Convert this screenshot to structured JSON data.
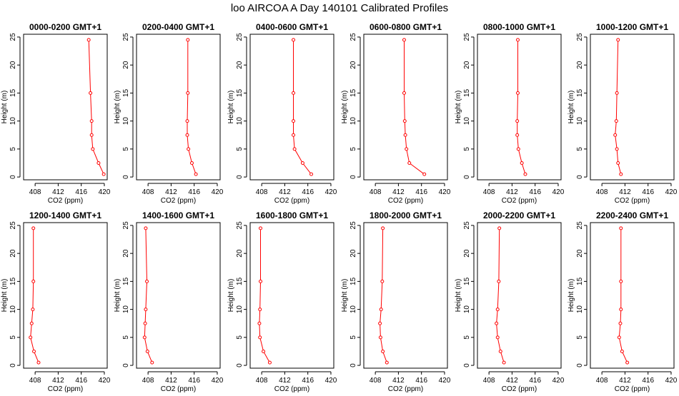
{
  "figure": {
    "title": "loo AIRCOA A  Day 140101  Calibrated Profiles"
  },
  "colors": {
    "profile": "#ff0000",
    "axis": "#000000",
    "background": "#ffffff"
  },
  "chart_data": [
    {
      "type": "line",
      "title": "0000-0200 GMT+1",
      "xlabel": "CO2 (ppm)",
      "ylabel": "Height (m)",
      "xlim": [
        406,
        420.5
      ],
      "ylim": [
        -0.5,
        25.5
      ],
      "xticks": [
        "408",
        "412",
        "416",
        "420"
      ],
      "yticks": [
        "0",
        "5",
        "10",
        "15",
        "20",
        "25"
      ],
      "series": [
        {
          "x": [
            419.9,
            419.0,
            418.0,
            417.8,
            417.8,
            417.6,
            417.3
          ],
          "y": [
            0.5,
            2.5,
            5,
            7.5,
            10,
            15,
            24.5
          ]
        }
      ]
    },
    {
      "type": "line",
      "title": "0200-0400 GMT+1",
      "xlabel": "CO2 (ppm)",
      "ylabel": "Height (m)",
      "xlim": [
        406,
        420.5
      ],
      "ylim": [
        -0.5,
        25.5
      ],
      "xticks": [
        "408",
        "412",
        "416",
        "420"
      ],
      "yticks": [
        "0",
        "5",
        "10",
        "15",
        "20",
        "25"
      ],
      "series": [
        {
          "x": [
            416.3,
            415.6,
            415.0,
            414.8,
            414.8,
            414.9,
            414.9
          ],
          "y": [
            0.5,
            2.5,
            5,
            7.5,
            10,
            15,
            24.5
          ]
        }
      ]
    },
    {
      "type": "line",
      "title": "0400-0600 GMT+1",
      "xlabel": "CO2 (ppm)",
      "ylabel": "Height (m)",
      "xlim": [
        406,
        420.5
      ],
      "ylim": [
        -0.5,
        25.5
      ],
      "xticks": [
        "408",
        "412",
        "416",
        "420"
      ],
      "yticks": [
        "0",
        "5",
        "10",
        "15",
        "20",
        "25"
      ],
      "series": [
        {
          "x": [
            416.6,
            415.1,
            413.7,
            413.5,
            413.5,
            413.5,
            413.5
          ],
          "y": [
            0.5,
            2.5,
            5,
            7.5,
            10,
            15,
            24.5
          ]
        }
      ]
    },
    {
      "type": "line",
      "title": "0600-0800 GMT+1",
      "xlabel": "CO2 (ppm)",
      "ylabel": "Height (m)",
      "xlim": [
        406,
        420.5
      ],
      "ylim": [
        -0.5,
        25.5
      ],
      "xticks": [
        "408",
        "412",
        "416",
        "420"
      ],
      "yticks": [
        "0",
        "5",
        "10",
        "15",
        "20",
        "25"
      ],
      "series": [
        {
          "x": [
            416.5,
            413.9,
            413.4,
            413.2,
            413.1,
            413.0,
            413.0
          ],
          "y": [
            0.5,
            2.5,
            5,
            7.5,
            10,
            15,
            24.5
          ]
        }
      ]
    },
    {
      "type": "line",
      "title": "0800-1000 GMT+1",
      "xlabel": "CO2 (ppm)",
      "ylabel": "Height (m)",
      "xlim": [
        406,
        420.5
      ],
      "ylim": [
        -0.5,
        25.5
      ],
      "xticks": [
        "408",
        "412",
        "416",
        "420"
      ],
      "yticks": [
        "0",
        "5",
        "10",
        "15",
        "20",
        "25"
      ],
      "series": [
        {
          "x": [
            414.3,
            413.7,
            413.1,
            412.9,
            412.9,
            413.0,
            413.0
          ],
          "y": [
            0.5,
            2.5,
            5,
            7.5,
            10,
            15,
            24.5
          ]
        }
      ]
    },
    {
      "type": "line",
      "title": "1000-1200 GMT+1",
      "xlabel": "CO2 (ppm)",
      "ylabel": "Height (m)",
      "xlim": [
        406,
        420.5
      ],
      "ylim": [
        -0.5,
        25.5
      ],
      "xticks": [
        "408",
        "412",
        "416",
        "420"
      ],
      "yticks": [
        "0",
        "5",
        "10",
        "15",
        "20",
        "25"
      ],
      "series": [
        {
          "x": [
            411.3,
            410.8,
            410.6,
            410.3,
            410.5,
            410.6,
            410.8
          ],
          "y": [
            0.5,
            2.5,
            5,
            7.5,
            10,
            15,
            24.5
          ]
        }
      ]
    },
    {
      "type": "line",
      "title": "1200-1400 GMT+1",
      "xlabel": "CO2 (ppm)",
      "ylabel": "Height (m)",
      "xlim": [
        406,
        420.5
      ],
      "ylim": [
        -0.5,
        25.5
      ],
      "xticks": [
        "408",
        "412",
        "416",
        "420"
      ],
      "yticks": [
        "0",
        "5",
        "10",
        "15",
        "20",
        "25"
      ],
      "series": [
        {
          "x": [
            408.6,
            407.8,
            407.2,
            407.4,
            407.6,
            407.7,
            407.7
          ],
          "y": [
            0.5,
            2.5,
            5,
            7.5,
            10,
            15,
            24.5
          ]
        }
      ]
    },
    {
      "type": "line",
      "title": "1400-1600 GMT+1",
      "xlabel": "CO2 (ppm)",
      "ylabel": "Height (m)",
      "xlim": [
        406,
        420.5
      ],
      "ylim": [
        -0.5,
        25.5
      ],
      "xticks": [
        "408",
        "412",
        "416",
        "420"
      ],
      "yticks": [
        "0",
        "5",
        "10",
        "15",
        "20",
        "25"
      ],
      "series": [
        {
          "x": [
            408.7,
            407.9,
            407.4,
            407.5,
            407.6,
            407.8,
            407.6
          ],
          "y": [
            0.5,
            2.5,
            5,
            7.5,
            10,
            15,
            24.5
          ]
        }
      ]
    },
    {
      "type": "line",
      "title": "1600-1800 GMT+1",
      "xlabel": "CO2 (ppm)",
      "ylabel": "Height (m)",
      "xlim": [
        406,
        420.5
      ],
      "ylim": [
        -0.5,
        25.5
      ],
      "xticks": [
        "408",
        "412",
        "416",
        "420"
      ],
      "yticks": [
        "0",
        "5",
        "10",
        "15",
        "20",
        "25"
      ],
      "series": [
        {
          "x": [
            409.4,
            408.3,
            407.7,
            407.6,
            407.7,
            407.8,
            407.8
          ],
          "y": [
            0.5,
            2.5,
            5,
            7.5,
            10,
            15,
            24.5
          ]
        }
      ]
    },
    {
      "type": "line",
      "title": "1800-2000 GMT+1",
      "xlabel": "CO2 (ppm)",
      "ylabel": "Height (m)",
      "xlim": [
        406,
        420.5
      ],
      "ylim": [
        -0.5,
        25.5
      ],
      "xticks": [
        "408",
        "412",
        "416",
        "420"
      ],
      "yticks": [
        "0",
        "5",
        "10",
        "15",
        "20",
        "25"
      ],
      "series": [
        {
          "x": [
            410.0,
            409.3,
            408.9,
            408.8,
            409.0,
            409.2,
            409.3
          ],
          "y": [
            0.5,
            2.5,
            5,
            7.5,
            10,
            15,
            24.5
          ]
        }
      ]
    },
    {
      "type": "line",
      "title": "2000-2200 GMT+1",
      "xlabel": "CO2 (ppm)",
      "ylabel": "Height (m)",
      "xlim": [
        406,
        420.5
      ],
      "ylim": [
        -0.5,
        25.5
      ],
      "xticks": [
        "408",
        "412",
        "416",
        "420"
      ],
      "yticks": [
        "0",
        "5",
        "10",
        "15",
        "20",
        "25"
      ],
      "series": [
        {
          "x": [
            410.6,
            410.0,
            409.5,
            409.3,
            409.5,
            409.7,
            409.8
          ],
          "y": [
            0.5,
            2.5,
            5,
            7.5,
            10,
            15,
            24.5
          ]
        }
      ]
    },
    {
      "type": "line",
      "title": "2200-2400 GMT+1",
      "xlabel": "CO2 (ppm)",
      "ylabel": "Height (m)",
      "xlim": [
        406,
        420.5
      ],
      "ylim": [
        -0.5,
        25.5
      ],
      "xticks": [
        "408",
        "412",
        "416",
        "420"
      ],
      "yticks": [
        "0",
        "5",
        "10",
        "15",
        "20",
        "25"
      ],
      "series": [
        {
          "x": [
            412.4,
            411.5,
            411.0,
            411.2,
            411.3,
            411.3,
            411.3
          ],
          "y": [
            0.5,
            2.5,
            5,
            7.5,
            10,
            15,
            24.5
          ]
        }
      ]
    }
  ]
}
